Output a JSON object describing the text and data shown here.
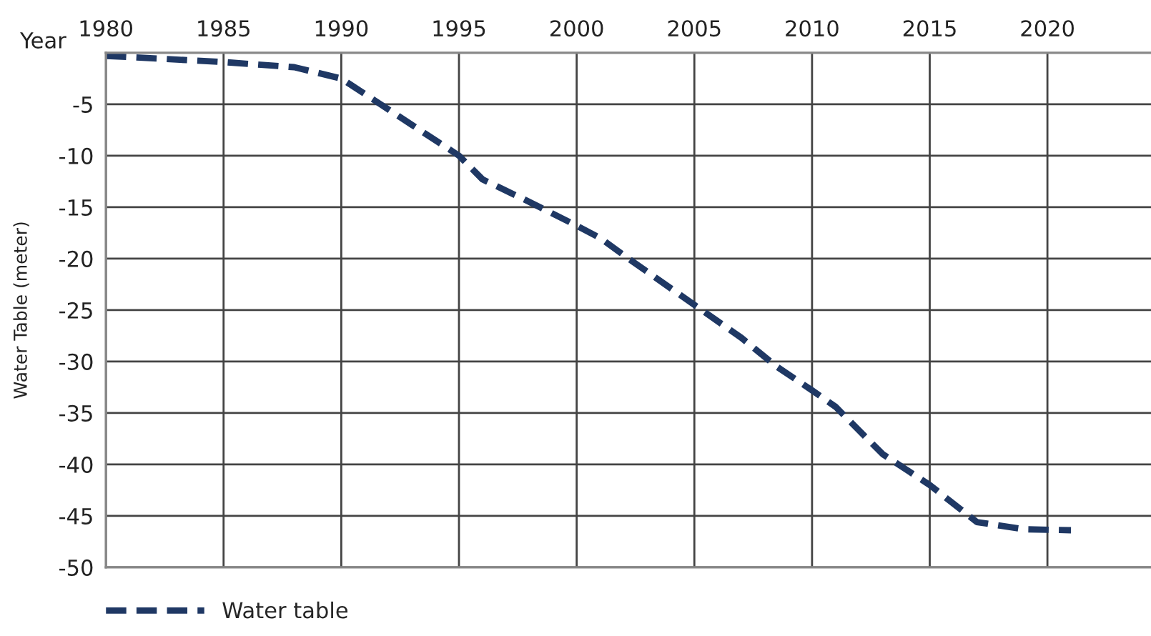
{
  "chart_data": {
    "type": "line",
    "xlabel": "Year",
    "ylabel": "Water Table (meter)",
    "xlim": [
      1980,
      2024.4
    ],
    "xticks": [
      1980,
      1985,
      1990,
      1995,
      2000,
      2005,
      2010,
      2015,
      2020
    ],
    "ylim": [
      -50,
      0
    ],
    "yticks": [
      -5,
      -10,
      -15,
      -20,
      -25,
      -30,
      -35,
      -40,
      -45,
      -50
    ],
    "grid": true,
    "legend": "bottom left",
    "line_style": "dashed",
    "series": [
      {
        "name": "Water table",
        "color": "#1f3864",
        "x": [
          1980,
          1985,
          1988,
          1990,
          1993,
          1995,
          1996,
          1998,
          2000,
          2001,
          2002.2,
          2005,
          2007,
          2008.5,
          2010,
          2011,
          2013,
          2015,
          2017,
          2019,
          2021
        ],
        "values": [
          -0.3,
          -0.9,
          -1.4,
          -2.5,
          -7,
          -10,
          -12.3,
          -14.5,
          -16.8,
          -18,
          -20,
          -24.5,
          -27.7,
          -30.5,
          -32.8,
          -34.4,
          -39,
          -42,
          -45.6,
          -46.3,
          -46.4
        ]
      }
    ]
  }
}
